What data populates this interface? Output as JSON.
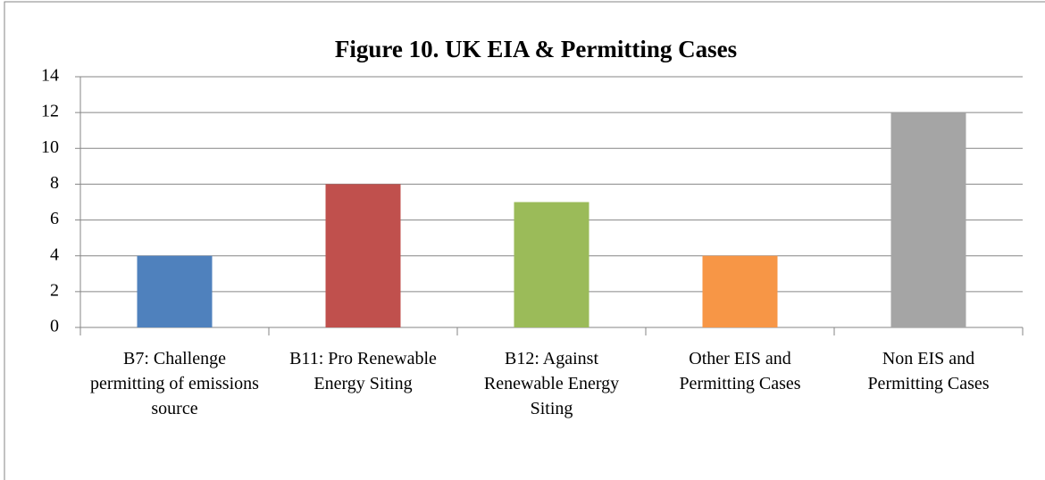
{
  "chart_data": {
    "type": "bar",
    "title": "Figure 10. UK EIA & Permitting Cases",
    "categories": [
      "B7: Challenge permitting of emissions source",
      "B11: Pro Renewable Energy Siting",
      "B12: Against Renewable Energy Siting",
      "Other EIS and Permitting Cases",
      "Non EIS and Permitting Cases"
    ],
    "values": [
      4,
      8,
      7,
      4,
      12
    ],
    "colors": [
      "#4f81bd",
      "#c0504d",
      "#9bbb59",
      "#f79646",
      "#a5a5a5"
    ],
    "ylim": [
      0,
      14
    ],
    "yticks": [
      0,
      2,
      4,
      6,
      8,
      10,
      12,
      14
    ],
    "grid": true
  }
}
